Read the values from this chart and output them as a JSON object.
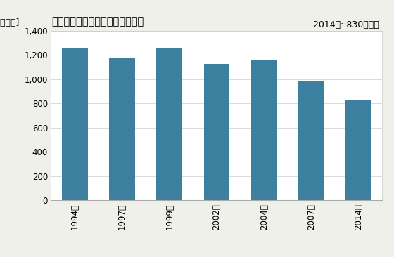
{
  "title": "機械器具卸売業の事業所数の推移",
  "ylabel": "[事業所]",
  "annotation": "2014年: 830事業所",
  "categories": [
    "1994年",
    "1997年",
    "1999年",
    "2002年",
    "2004年",
    "2007年",
    "2014年"
  ],
  "values": [
    1253,
    1178,
    1261,
    1128,
    1163,
    980,
    830
  ],
  "bar_color": "#3d7f9f",
  "ylim": [
    0,
    1400
  ],
  "yticks": [
    0,
    200,
    400,
    600,
    800,
    1000,
    1200,
    1400
  ],
  "background_color": "#f0f0eb",
  "plot_bg_color": "#ffffff",
  "title_fontsize": 10.5,
  "annotation_fontsize": 9,
  "tick_fontsize": 8.5,
  "ylabel_fontsize": 9
}
